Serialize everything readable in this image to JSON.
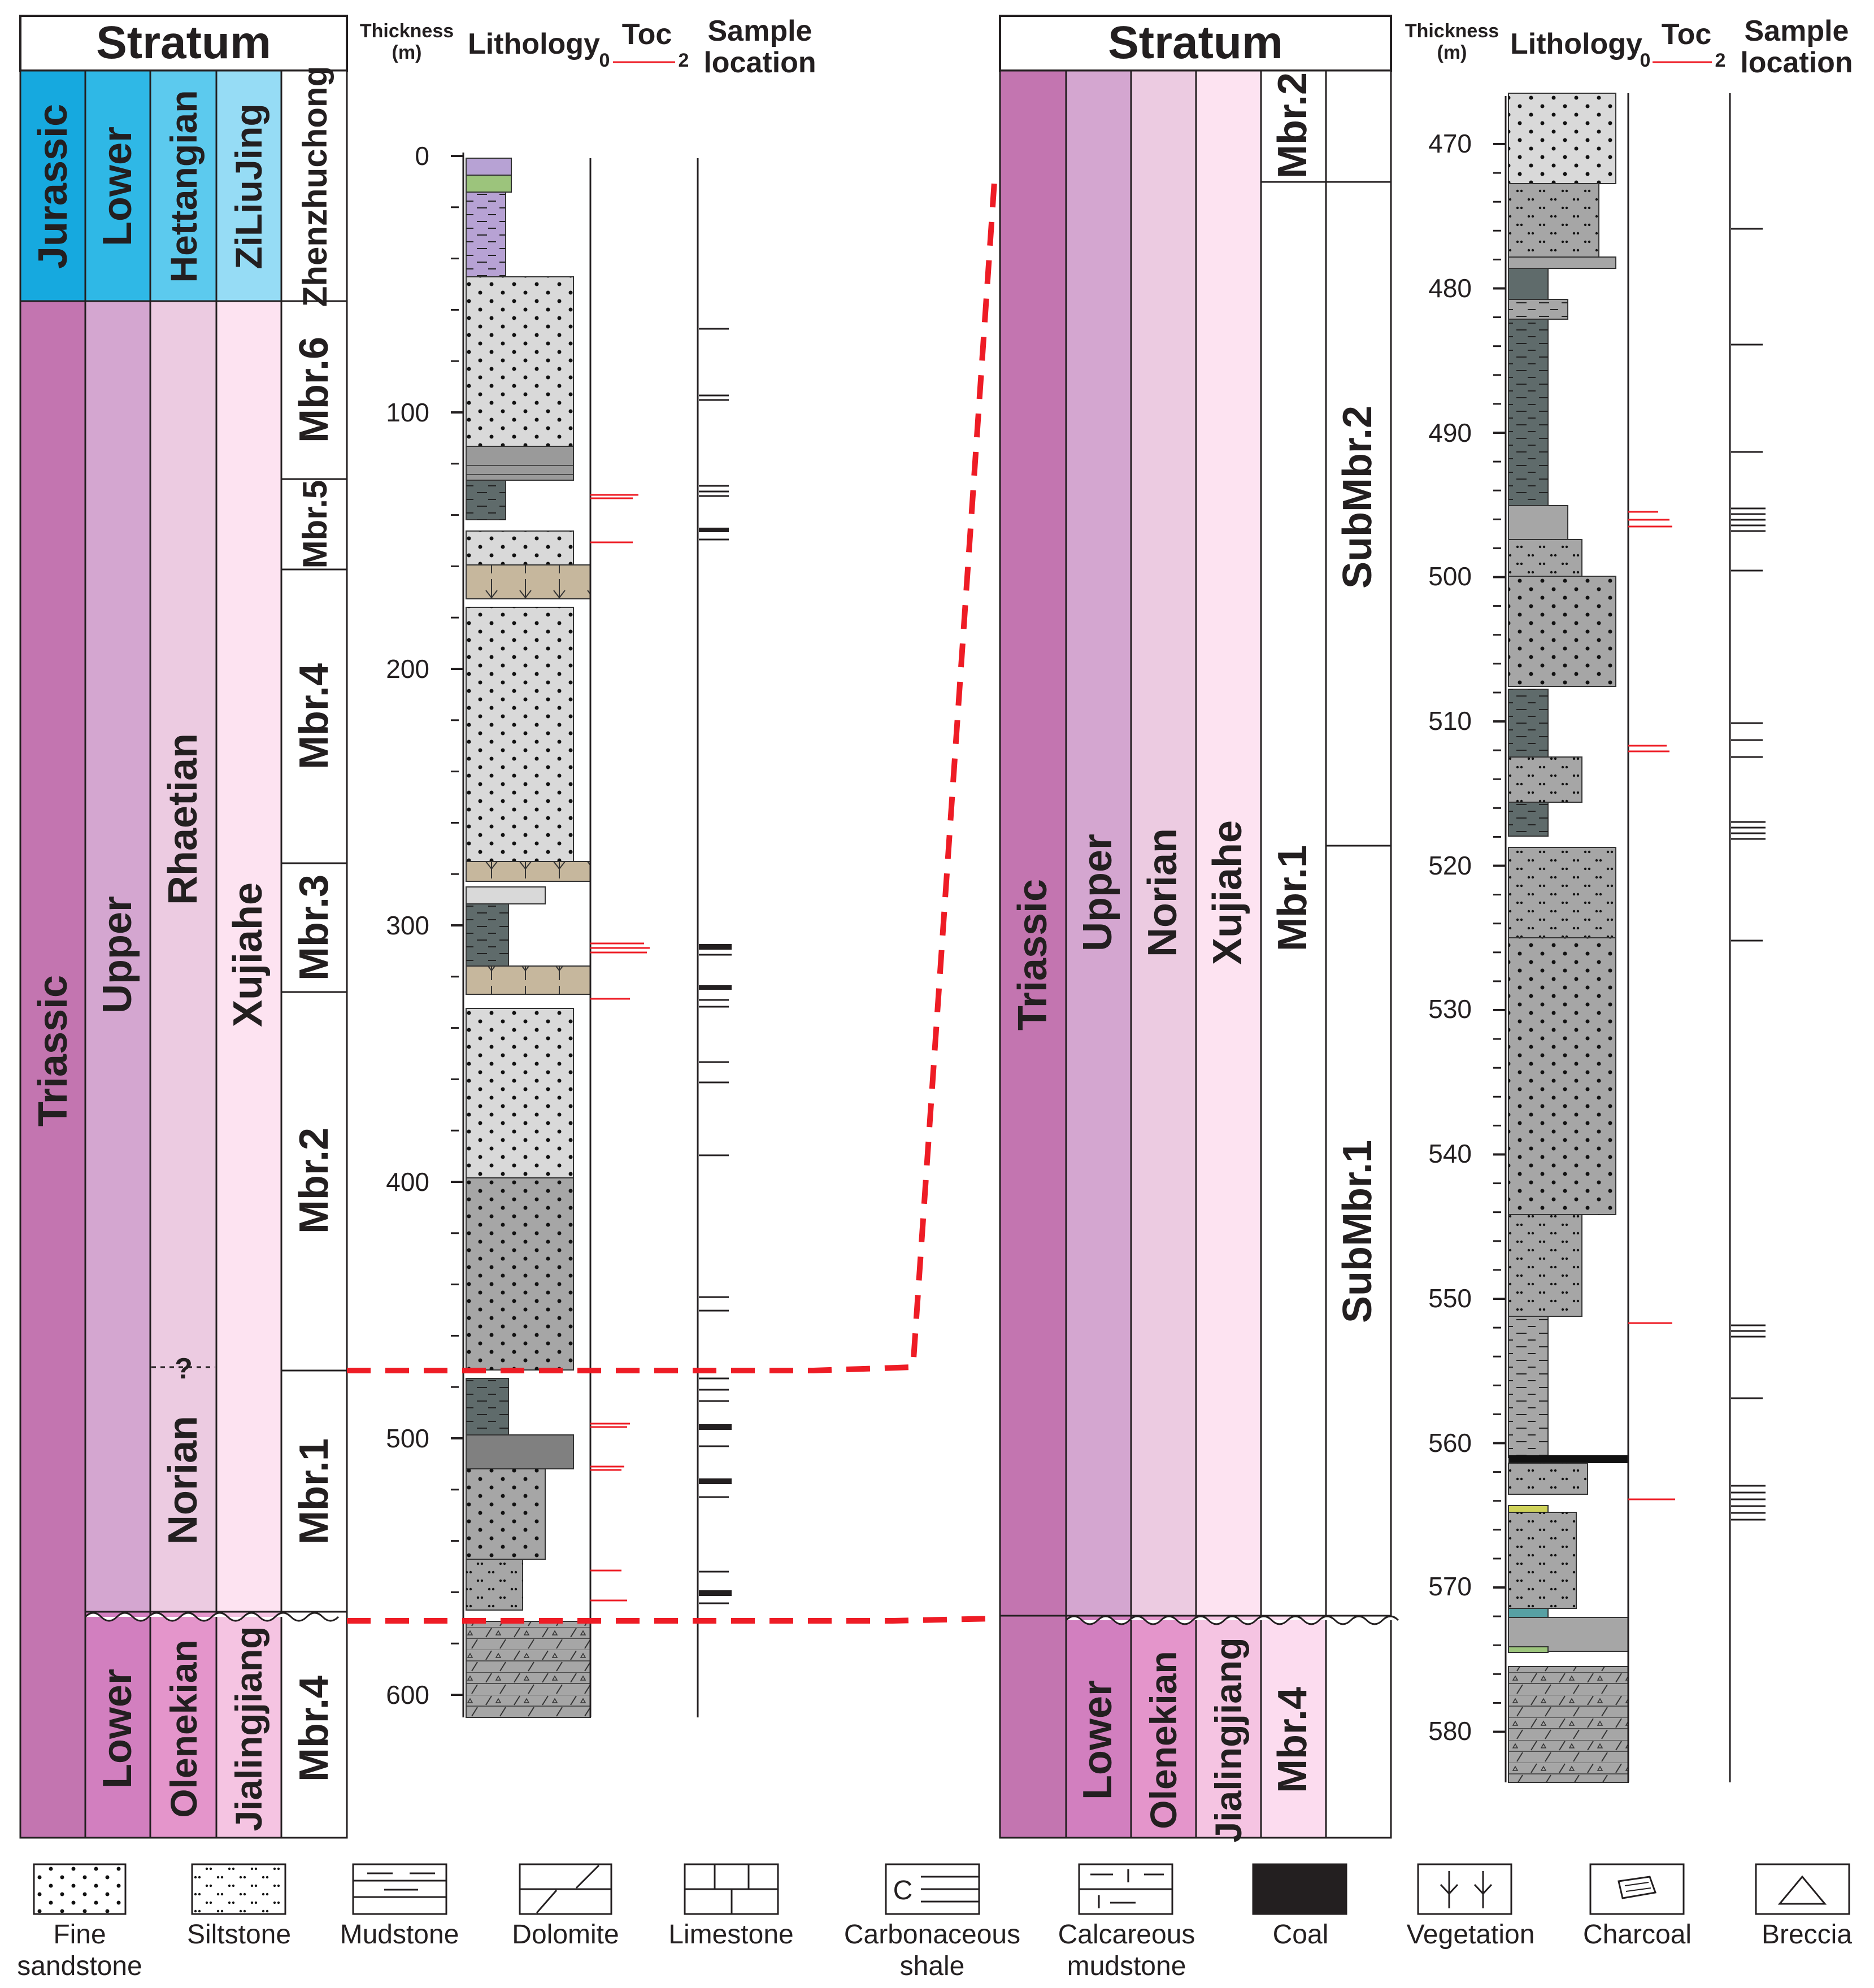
{
  "left": {
    "header": "Stratum",
    "thickness_label": "Thickness",
    "thickness_unit": "(m)",
    "lithology_label": "Lithology",
    "toc_label": "Toc",
    "toc_min": "0",
    "toc_max": "2",
    "sample_label_1": "Sample",
    "sample_label_2": "location",
    "system": {
      "jurassic": "Jurassic",
      "triassic": "Triassic"
    },
    "series": {
      "lower_j": "Lower",
      "upper": "Upper",
      "lower_t": "Lower"
    },
    "stage": {
      "hettangian": "Hettangian",
      "rhaetian": "Rhaetian",
      "uncertain": "?",
      "norian": "Norian",
      "olenekian": "Olenekian"
    },
    "formation": {
      "ziliujing": "ZiLiuJing",
      "xujiahe": "Xujiahe",
      "jialingjiang": "Jialingjiang"
    },
    "member": {
      "zhenzhuchong": "Zhenzhuchong",
      "mbr6": "Mbr.6",
      "mbr5": "Mbr.5",
      "mbr4": "Mbr.4",
      "mbr3": "Mbr.3",
      "mbr2": "Mbr.2",
      "mbr1": "Mbr.1",
      "mbr4_j": "Mbr.4"
    },
    "depth_ticks": [
      "0",
      "100",
      "200",
      "300",
      "400",
      "500",
      "600"
    ]
  },
  "right": {
    "header": "Stratum",
    "thickness_label": "Thickness",
    "thickness_unit": "(m)",
    "lithology_label": "Lithology",
    "toc_label": "Toc",
    "toc_min": "0",
    "toc_max": "2",
    "sample_label_1": "Sample",
    "sample_label_2": "location",
    "system": {
      "triassic": "Triassic"
    },
    "series": {
      "upper": "Upper",
      "lower": "Lower"
    },
    "stage": {
      "norian": "Norian",
      "olenekian": "Olenekian"
    },
    "formation": {
      "xujiahe": "Xujiahe",
      "jialingjiang": "Jialingjiang"
    },
    "member": {
      "mbr2": "Mbr.2",
      "mbr1": "Mbr.1",
      "mbr4": "Mbr.4"
    },
    "submember": {
      "sub2": "SubMbr.2",
      "sub1": "SubMbr.1"
    },
    "depth_ticks": [
      "470",
      "480",
      "490",
      "500",
      "510",
      "520",
      "530",
      "540",
      "550",
      "560",
      "570",
      "580"
    ]
  },
  "legend": [
    {
      "line1": "Fine",
      "line2": "sandstone"
    },
    {
      "line1": "Siltstone",
      "line2": ""
    },
    {
      "line1": "Mudstone",
      "line2": ""
    },
    {
      "line1": "Dolomite",
      "line2": ""
    },
    {
      "line1": "Limestone",
      "line2": ""
    },
    {
      "line1": "Carbonaceous",
      "line2": "shale"
    },
    {
      "line1": "Calcareous",
      "line2": "mudstone"
    },
    {
      "line1": "Coal",
      "line2": ""
    },
    {
      "line1": "Vegetation",
      "line2": ""
    },
    {
      "line1": "Charcoal",
      "line2": ""
    },
    {
      "line1": "Breccia",
      "line2": ""
    }
  ],
  "colors": {
    "system_jurassic": "#16a9df",
    "series_jurassic": "#2fb8e6",
    "stage_jurassic": "#5ccaee",
    "fm_jurassic": "#96dcf5",
    "system_triassic": "#c375b0",
    "series_upper": "#d4a6d0",
    "stage_upper": "#eccbe1",
    "fm_upper": "#fde3f1",
    "series_lower": "#d27fbf",
    "stage_lower": "#e495cb",
    "fm_lower": "#f5c4e2",
    "mbr_lower": "#fcdcef",
    "correlation": "#ee1c25",
    "toc": "#ee1c25"
  }
}
